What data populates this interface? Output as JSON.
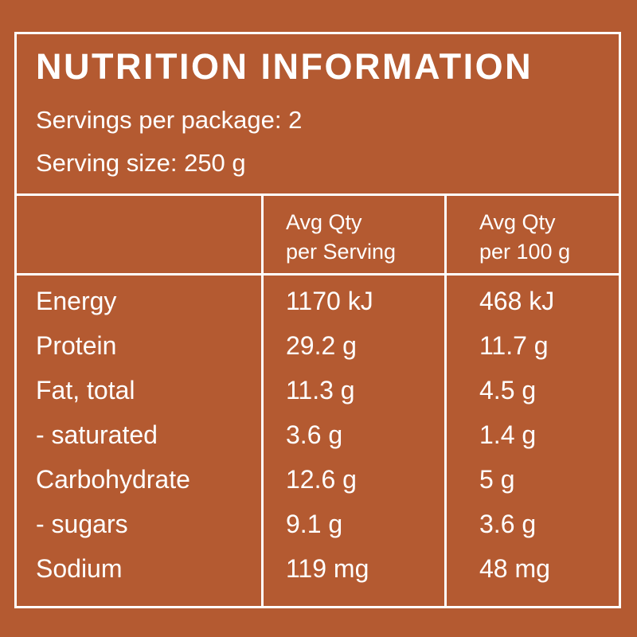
{
  "title": "NUTRITION INFORMATION",
  "servings_per_package": "Servings per package: 2",
  "serving_size": "Serving size: 250 g",
  "columns": {
    "per_serving": [
      "Avg Qty",
      "per Serving"
    ],
    "per_100g": [
      "Avg Qty",
      "per 100 g"
    ]
  },
  "nutrients": [
    {
      "name": "Energy",
      "per_serving": "1170 kJ",
      "per_100g": "468 kJ"
    },
    {
      "name": "Protein",
      "per_serving": "29.2 g",
      "per_100g": "11.7 g"
    },
    {
      "name": "Fat, total",
      "per_serving": "11.3 g",
      "per_100g": "4.5 g"
    },
    {
      "name": "- saturated",
      "per_serving": "3.6 g",
      "per_100g": "1.4 g"
    },
    {
      "name": "Carbohydrate",
      "per_serving": "12.6 g",
      "per_100g": "5 g"
    },
    {
      "name": "- sugars",
      "per_serving": "9.1 g",
      "per_100g": "3.6 g"
    },
    {
      "name": "Sodium",
      "per_serving": "119 mg",
      "per_100g": "48 mg"
    }
  ],
  "colors": {
    "background": "#b45a31",
    "foreground": "#ffffff"
  }
}
